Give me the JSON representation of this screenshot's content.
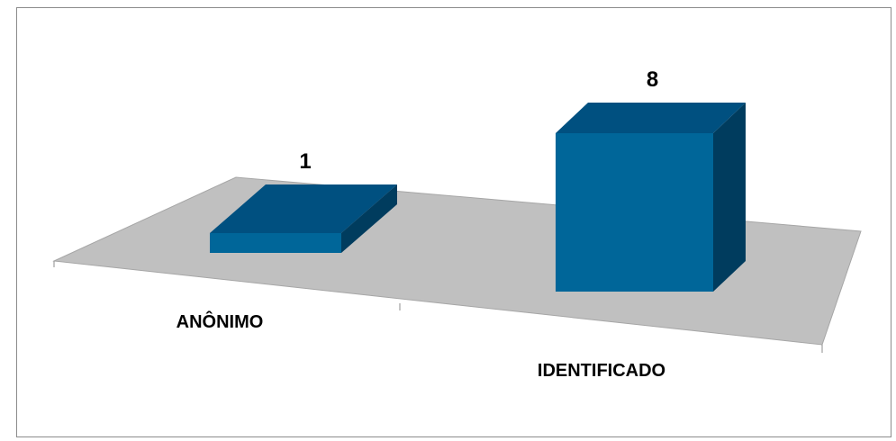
{
  "chart_data": {
    "type": "bar",
    "categories": [
      "ANÔNIMO",
      "IDENTIFICADO"
    ],
    "values": [
      1,
      8
    ],
    "data_labels": [
      "1",
      "8"
    ],
    "title": "",
    "xlabel": "",
    "ylabel": "",
    "ylim": [
      0,
      8
    ],
    "grid": false,
    "legend": "none",
    "three_d": true,
    "colors": {
      "bar_front": "#006699",
      "bar_top": "#005080",
      "bar_side": "#003c5e",
      "floor": "#c0c0c0",
      "frame": "#8c8c8c"
    }
  }
}
